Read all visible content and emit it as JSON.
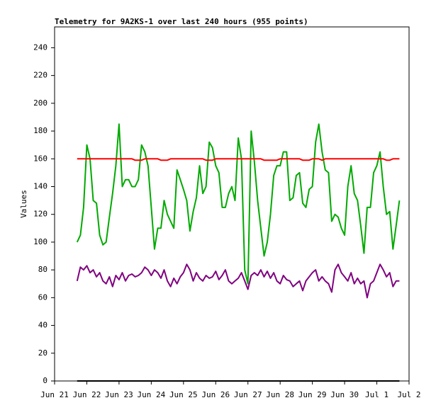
{
  "chart_data": {
    "type": "line",
    "title": "Telemetry for 9A2KS-1 over last 240 hours (955 points)",
    "y_label": "Values",
    "x": [
      0.7,
      0.8,
      0.9,
      1.0,
      1.1,
      1.2,
      1.3,
      1.4,
      1.5,
      1.6,
      1.7,
      1.8,
      1.9,
      2.0,
      2.1,
      2.2,
      2.3,
      2.4,
      2.5,
      2.6,
      2.7,
      2.8,
      2.9,
      3.0,
      3.1,
      3.2,
      3.3,
      3.4,
      3.5,
      3.6,
      3.7,
      3.8,
      3.9,
      4.0,
      4.1,
      4.2,
      4.3,
      4.4,
      4.5,
      4.6,
      4.7,
      4.8,
      4.9,
      5.0,
      5.1,
      5.2,
      5.3,
      5.4,
      5.5,
      5.6,
      5.7,
      5.8,
      5.9,
      6.0,
      6.1,
      6.2,
      6.3,
      6.4,
      6.5,
      6.6,
      6.7,
      6.8,
      6.9,
      7.0,
      7.1,
      7.2,
      7.3,
      7.4,
      7.5,
      7.6,
      7.7,
      7.8,
      7.9,
      8.0,
      8.1,
      8.2,
      8.3,
      8.4,
      8.5,
      8.6,
      8.7,
      8.8,
      8.9,
      9.0,
      9.1,
      9.2,
      9.3,
      9.4,
      9.5,
      9.6,
      9.7,
      9.8,
      9.9,
      10.0,
      10.1,
      10.2,
      10.3,
      10.4,
      10.5,
      10.6,
      10.7
    ],
    "series": [
      {
        "color": "#00aa00",
        "values": [
          100,
          105,
          125,
          170,
          160,
          130,
          128,
          105,
          98,
          100,
          118,
          135,
          155,
          185,
          140,
          145,
          145,
          140,
          140,
          145,
          170,
          165,
          155,
          125,
          95,
          110,
          110,
          130,
          120,
          115,
          110,
          152,
          145,
          138,
          130,
          108,
          122,
          132,
          155,
          135,
          140,
          172,
          168,
          155,
          150,
          125,
          125,
          135,
          140,
          130,
          175,
          160,
          80,
          70,
          180,
          158,
          130,
          110,
          90,
          100,
          120,
          148,
          155,
          155,
          165,
          165,
          130,
          132,
          148,
          150,
          128,
          125,
          138,
          140,
          172,
          185,
          165,
          152,
          150,
          115,
          120,
          118,
          110,
          105,
          140,
          155,
          135,
          130,
          112,
          92,
          125,
          125,
          150,
          155,
          165,
          140,
          120,
          122,
          95,
          112,
          130
        ]
      },
      {
        "color": "#800080",
        "values": [
          72,
          82,
          80,
          83,
          78,
          80,
          75,
          78,
          72,
          70,
          75,
          68,
          76,
          73,
          78,
          72,
          76,
          77,
          75,
          76,
          78,
          82,
          80,
          76,
          80,
          78,
          74,
          80,
          72,
          68,
          74,
          70,
          75,
          78,
          84,
          80,
          72,
          78,
          74,
          72,
          76,
          74,
          75,
          79,
          73,
          76,
          80,
          72,
          70,
          72,
          74,
          78,
          72,
          66,
          76,
          78,
          76,
          80,
          75,
          79,
          74,
          78,
          72,
          70,
          76,
          73,
          72,
          68,
          70,
          72,
          65,
          72,
          75,
          78,
          80,
          72,
          75,
          72,
          70,
          64,
          80,
          84,
          78,
          75,
          72,
          78,
          70,
          74,
          70,
          72,
          60,
          70,
          72,
          78,
          84,
          80,
          75,
          78,
          68,
          72,
          72
        ]
      },
      {
        "color": "#ff0000",
        "values": [
          160,
          160,
          160,
          160,
          160,
          160,
          160,
          160,
          160,
          160,
          160,
          160,
          160,
          160,
          160,
          160,
          160,
          160,
          159,
          159,
          159,
          160,
          160,
          160,
          160,
          160,
          159,
          159,
          159,
          160,
          160,
          160,
          160,
          160,
          160,
          160,
          160,
          160,
          160,
          160,
          159,
          159,
          159,
          160,
          160,
          160,
          160,
          160,
          160,
          160,
          160,
          160,
          160,
          160,
          160,
          160,
          160,
          160,
          159,
          159,
          159,
          159,
          159,
          160,
          160,
          160,
          160,
          160,
          160,
          160,
          159,
          159,
          159,
          160,
          160,
          160,
          159,
          160,
          160,
          160,
          160,
          160,
          160,
          160,
          160,
          160,
          160,
          160,
          160,
          160,
          160,
          160,
          160,
          160,
          160,
          160,
          159,
          159,
          160,
          160,
          160
        ]
      },
      {
        "color": "#000000",
        "values": [
          0,
          0,
          0,
          0,
          0,
          0,
          0,
          0,
          0,
          0,
          0,
          0,
          0,
          0,
          0,
          0,
          0,
          0,
          0,
          0,
          0,
          0,
          0,
          0,
          0,
          0,
          0,
          0,
          0,
          0,
          0,
          0,
          0,
          0,
          0,
          0,
          0,
          0,
          0,
          0,
          0,
          0,
          0,
          0,
          0,
          0,
          0,
          0,
          0,
          0,
          0,
          0,
          0,
          0,
          0,
          0,
          0,
          0,
          0,
          0,
          0,
          0,
          0,
          0,
          0,
          0,
          0,
          0,
          0,
          0,
          0,
          0,
          0,
          0,
          0,
          0,
          0,
          0,
          0,
          0,
          0,
          0,
          0,
          0,
          0,
          0,
          0,
          0,
          0,
          0,
          0,
          0,
          0,
          0,
          0,
          0,
          0,
          0,
          0,
          0,
          0
        ]
      }
    ],
    "xlim": [
      0,
      11
    ],
    "xticks": [
      {
        "value": 0,
        "label": "Jun 21"
      },
      {
        "value": 1,
        "label": "Jun 22"
      },
      {
        "value": 2,
        "label": "Jun 23"
      },
      {
        "value": 3,
        "label": "Jun 24"
      },
      {
        "value": 4,
        "label": "Jun 25"
      },
      {
        "value": 5,
        "label": "Jun 26"
      },
      {
        "value": 6,
        "label": "Jun 27"
      },
      {
        "value": 7,
        "label": "Jun 28"
      },
      {
        "value": 8,
        "label": "Jun 29"
      },
      {
        "value": 9,
        "label": "Jun 30"
      },
      {
        "value": 10,
        "label": "Jul 1"
      },
      {
        "value": 11,
        "label": "Jul 2"
      }
    ],
    "ylim": [
      0,
      255
    ],
    "yticks": [
      0,
      20,
      40,
      60,
      80,
      100,
      120,
      140,
      160,
      180,
      200,
      220,
      240
    ],
    "grid": false
  }
}
